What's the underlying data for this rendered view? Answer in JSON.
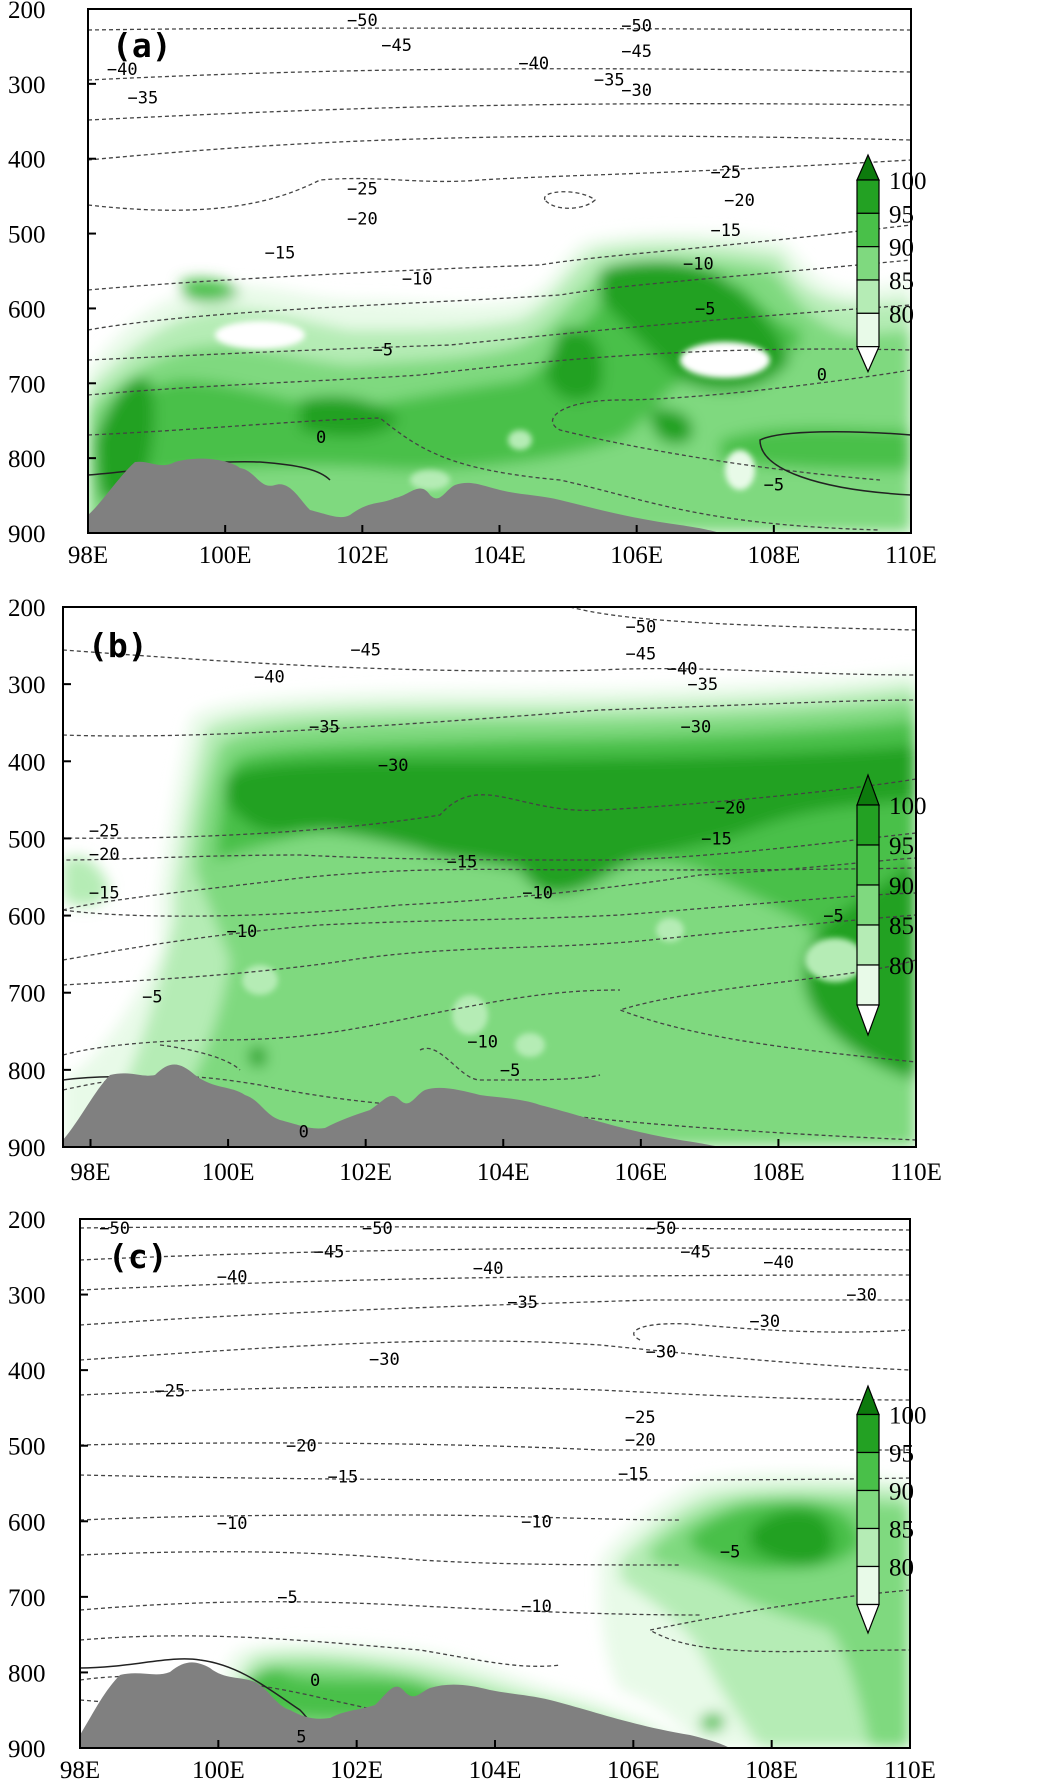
{
  "chart_data": [
    {
      "type": "contour",
      "panel": "(a)",
      "xlim": [
        98,
        110
      ],
      "ylim": [
        900,
        200
      ],
      "x_ticks": [
        "98E",
        "100E",
        "102E",
        "104E",
        "106E",
        "108E",
        "110E"
      ],
      "y_ticks": [
        "200",
        "300",
        "400",
        "500",
        "600",
        "700",
        "800",
        "900"
      ],
      "fill_variable_levels": [
        80,
        85,
        90,
        95,
        100
      ],
      "temperature_isotherms": [
        {
          "value": -50,
          "label": "−50",
          "lon": 102.0,
          "p": 215
        },
        {
          "value": -50,
          "label": "−50",
          "lon": 106.0,
          "p": 222
        },
        {
          "value": -45,
          "label": "−45",
          "lon": 102.5,
          "p": 248
        },
        {
          "value": -45,
          "label": "−45",
          "lon": 106.0,
          "p": 256
        },
        {
          "value": -40,
          "label": "−40",
          "lon": 98.5,
          "p": 280
        },
        {
          "value": -40,
          "label": "−40",
          "lon": 104.5,
          "p": 272
        },
        {
          "value": -35,
          "label": "−35",
          "lon": 98.8,
          "p": 318
        },
        {
          "value": -35,
          "label": "−35",
          "lon": 105.6,
          "p": 294
        },
        {
          "value": -30,
          "label": "−30",
          "lon": 106.0,
          "p": 308
        },
        {
          "value": -25,
          "label": "−25",
          "lon": 102.0,
          "p": 440
        },
        {
          "value": -25,
          "label": "−25",
          "lon": 107.3,
          "p": 418
        },
        {
          "value": -20,
          "label": "−20",
          "lon": 102.0,
          "p": 480
        },
        {
          "value": -20,
          "label": "−20",
          "lon": 107.5,
          "p": 455
        },
        {
          "value": -15,
          "label": "−15",
          "lon": 100.8,
          "p": 525
        },
        {
          "value": -15,
          "label": "−15",
          "lon": 107.3,
          "p": 495
        },
        {
          "value": -10,
          "label": "−10",
          "lon": 102.8,
          "p": 560
        },
        {
          "value": -10,
          "label": "−10",
          "lon": 106.9,
          "p": 540
        },
        {
          "value": -5,
          "label": "−5",
          "lon": 102.3,
          "p": 655
        },
        {
          "value": -5,
          "label": "−5",
          "lon": 107.0,
          "p": 600
        },
        {
          "value": -5,
          "label": "−5",
          "lon": 108.0,
          "p": 835
        },
        {
          "value": 0,
          "label": "0",
          "lon": 101.4,
          "p": 772
        },
        {
          "value": 0,
          "label": "0",
          "lon": 108.7,
          "p": 688
        }
      ]
    },
    {
      "type": "contour",
      "panel": "(b)",
      "xlim": [
        97.6,
        110
      ],
      "ylim": [
        900,
        200
      ],
      "x_ticks": [
        "98E",
        "100E",
        "102E",
        "104E",
        "106E",
        "108E",
        "110E"
      ],
      "y_ticks": [
        "200",
        "300",
        "400",
        "500",
        "600",
        "700",
        "800",
        "900"
      ],
      "fill_variable_levels": [
        80,
        85,
        90,
        95,
        100
      ],
      "temperature_isotherms": [
        {
          "value": -50,
          "label": "−50",
          "lon": 106.0,
          "p": 225
        },
        {
          "value": -45,
          "label": "−45",
          "lon": 102.0,
          "p": 255
        },
        {
          "value": -45,
          "label": "−45",
          "lon": 106.0,
          "p": 260
        },
        {
          "value": -40,
          "label": "−40",
          "lon": 106.6,
          "p": 280
        },
        {
          "value": -40,
          "label": "−40",
          "lon": 100.6,
          "p": 290
        },
        {
          "value": -35,
          "label": "−35",
          "lon": 106.9,
          "p": 300
        },
        {
          "value": -35,
          "label": "−35",
          "lon": 101.4,
          "p": 355
        },
        {
          "value": -30,
          "label": "−30",
          "lon": 106.8,
          "p": 355
        },
        {
          "value": -30,
          "label": "−30",
          "lon": 102.4,
          "p": 405
        },
        {
          "value": -25,
          "label": "−25",
          "lon": 98.2,
          "p": 490
        },
        {
          "value": -20,
          "label": "−20",
          "lon": 107.3,
          "p": 460
        },
        {
          "value": -20,
          "label": "−20",
          "lon": 98.2,
          "p": 520
        },
        {
          "value": -15,
          "label": "−15",
          "lon": 107.1,
          "p": 500
        },
        {
          "value": -15,
          "label": "−15",
          "lon": 103.4,
          "p": 530
        },
        {
          "value": -15,
          "label": "−15",
          "lon": 98.2,
          "p": 570
        },
        {
          "value": -10,
          "label": "−10",
          "lon": 104.5,
          "p": 570
        },
        {
          "value": -10,
          "label": "−10",
          "lon": 100.2,
          "p": 620
        },
        {
          "value": -10,
          "label": "−10",
          "lon": 103.7,
          "p": 763
        },
        {
          "value": -5,
          "label": "−5",
          "lon": 108.8,
          "p": 600
        },
        {
          "value": -5,
          "label": "−5",
          "lon": 98.9,
          "p": 705
        },
        {
          "value": -5,
          "label": "−5",
          "lon": 104.1,
          "p": 800
        },
        {
          "value": 0,
          "label": "0",
          "lon": 101.1,
          "p": 880
        }
      ]
    },
    {
      "type": "contour",
      "panel": "(c)",
      "xlim": [
        98,
        110
      ],
      "ylim": [
        900,
        200
      ],
      "x_ticks": [
        "98E",
        "100E",
        "102E",
        "104E",
        "106E",
        "108E",
        "110E"
      ],
      "y_ticks": [
        "200",
        "300",
        "400",
        "500",
        "600",
        "700",
        "800",
        "900"
      ],
      "fill_variable_levels": [
        80,
        85,
        90,
        95,
        100
      ],
      "temperature_isotherms": [
        {
          "value": -50,
          "label": "−50",
          "lon": 98.5,
          "p": 212
        },
        {
          "value": -50,
          "label": "−50",
          "lon": 102.3,
          "p": 212
        },
        {
          "value": -50,
          "label": "−50",
          "lon": 106.4,
          "p": 212
        },
        {
          "value": -45,
          "label": "−45",
          "lon": 101.6,
          "p": 243
        },
        {
          "value": -45,
          "label": "−45",
          "lon": 106.9,
          "p": 243
        },
        {
          "value": -40,
          "label": "−40",
          "lon": 100.2,
          "p": 276
        },
        {
          "value": -40,
          "label": "−40",
          "lon": 103.9,
          "p": 265
        },
        {
          "value": -40,
          "label": "−40",
          "lon": 108.1,
          "p": 257
        },
        {
          "value": -35,
          "label": "−35",
          "lon": 104.4,
          "p": 310
        },
        {
          "value": -30,
          "label": "−30",
          "lon": 109.3,
          "p": 300
        },
        {
          "value": -30,
          "label": "−30",
          "lon": 107.9,
          "p": 335
        },
        {
          "value": -30,
          "label": "−30",
          "lon": 106.4,
          "p": 375
        },
        {
          "value": -30,
          "label": "−30",
          "lon": 102.4,
          "p": 385
        },
        {
          "value": -25,
          "label": "−25",
          "lon": 99.3,
          "p": 427
        },
        {
          "value": -25,
          "label": "−25",
          "lon": 106.1,
          "p": 462
        },
        {
          "value": -20,
          "label": "−20",
          "lon": 101.2,
          "p": 500
        },
        {
          "value": -20,
          "label": "−20",
          "lon": 106.1,
          "p": 492
        },
        {
          "value": -15,
          "label": "−15",
          "lon": 101.8,
          "p": 541
        },
        {
          "value": -15,
          "label": "−15",
          "lon": 106.0,
          "p": 537
        },
        {
          "value": -10,
          "label": "−10",
          "lon": 100.2,
          "p": 602
        },
        {
          "value": -10,
          "label": "−10",
          "lon": 104.6,
          "p": 600
        },
        {
          "value": -10,
          "label": "−10",
          "lon": 104.6,
          "p": 712
        },
        {
          "value": -5,
          "label": "−5",
          "lon": 101.0,
          "p": 700
        },
        {
          "value": -5,
          "label": "−5",
          "lon": 107.4,
          "p": 640
        },
        {
          "value": 0,
          "label": "0",
          "lon": 101.4,
          "p": 810
        },
        {
          "value": 5,
          "label": "5",
          "lon": 101.2,
          "p": 885
        }
      ]
    }
  ],
  "colorbar": {
    "labels": [
      "100",
      "95",
      "90",
      "85",
      "80"
    ],
    "colors": [
      "#23a123",
      "#49c049",
      "#7fd97f",
      "#b5ecb5",
      "#e8fae8"
    ]
  }
}
